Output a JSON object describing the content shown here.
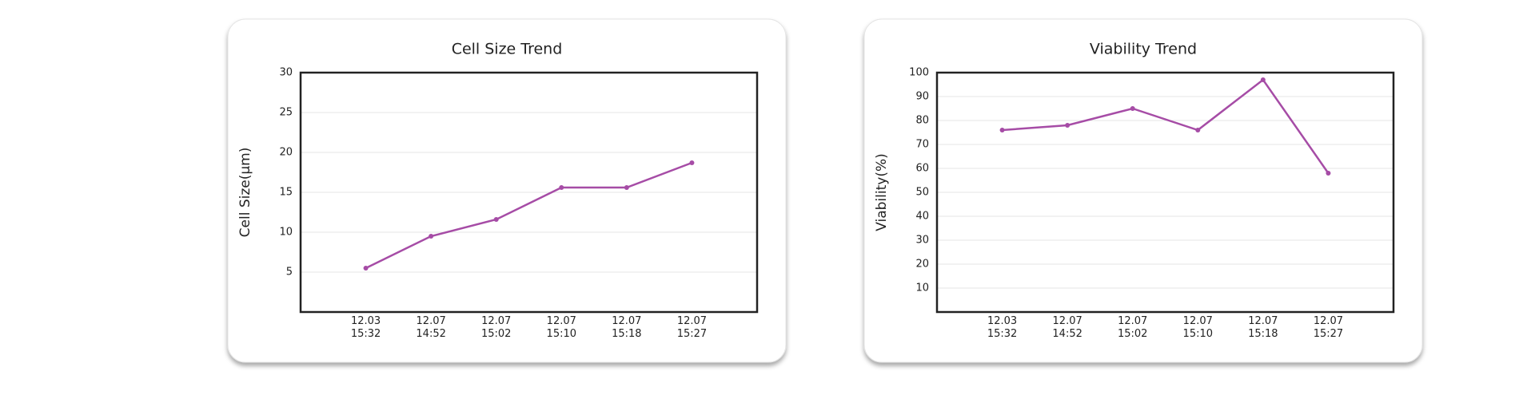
{
  "chart_data": [
    {
      "type": "line",
      "title": "Cell Size Trend",
      "y_label": "Cell Size(μm)",
      "categories": [
        "12.03\n15:32",
        "12.07\n14:52",
        "12.07\n15:02",
        "12.07\n15:10",
        "12.07\n15:18",
        "12.07\n15:27"
      ],
      "values": [
        5.5,
        9.5,
        11.6,
        15.6,
        15.6,
        18.7
      ],
      "color": "#a64ca6",
      "ylim": [
        0,
        30
      ],
      "yticks": [
        5,
        10,
        15,
        20,
        25,
        30
      ],
      "grid": true
    },
    {
      "type": "line",
      "title": "Viability Trend",
      "y_label": "Viability(%)",
      "categories": [
        "12.03\n15:32",
        "12.07\n14:52",
        "12.07\n15:02",
        "12.07\n15:10",
        "12.07\n15:18",
        "12.07\n15:27"
      ],
      "values": [
        76,
        78,
        85,
        76,
        97,
        58
      ],
      "color": "#a64ca6",
      "ylim": [
        0,
        100
      ],
      "yticks": [
        10,
        20,
        30,
        40,
        50,
        60,
        70,
        80,
        90,
        100
      ],
      "grid": true
    }
  ]
}
